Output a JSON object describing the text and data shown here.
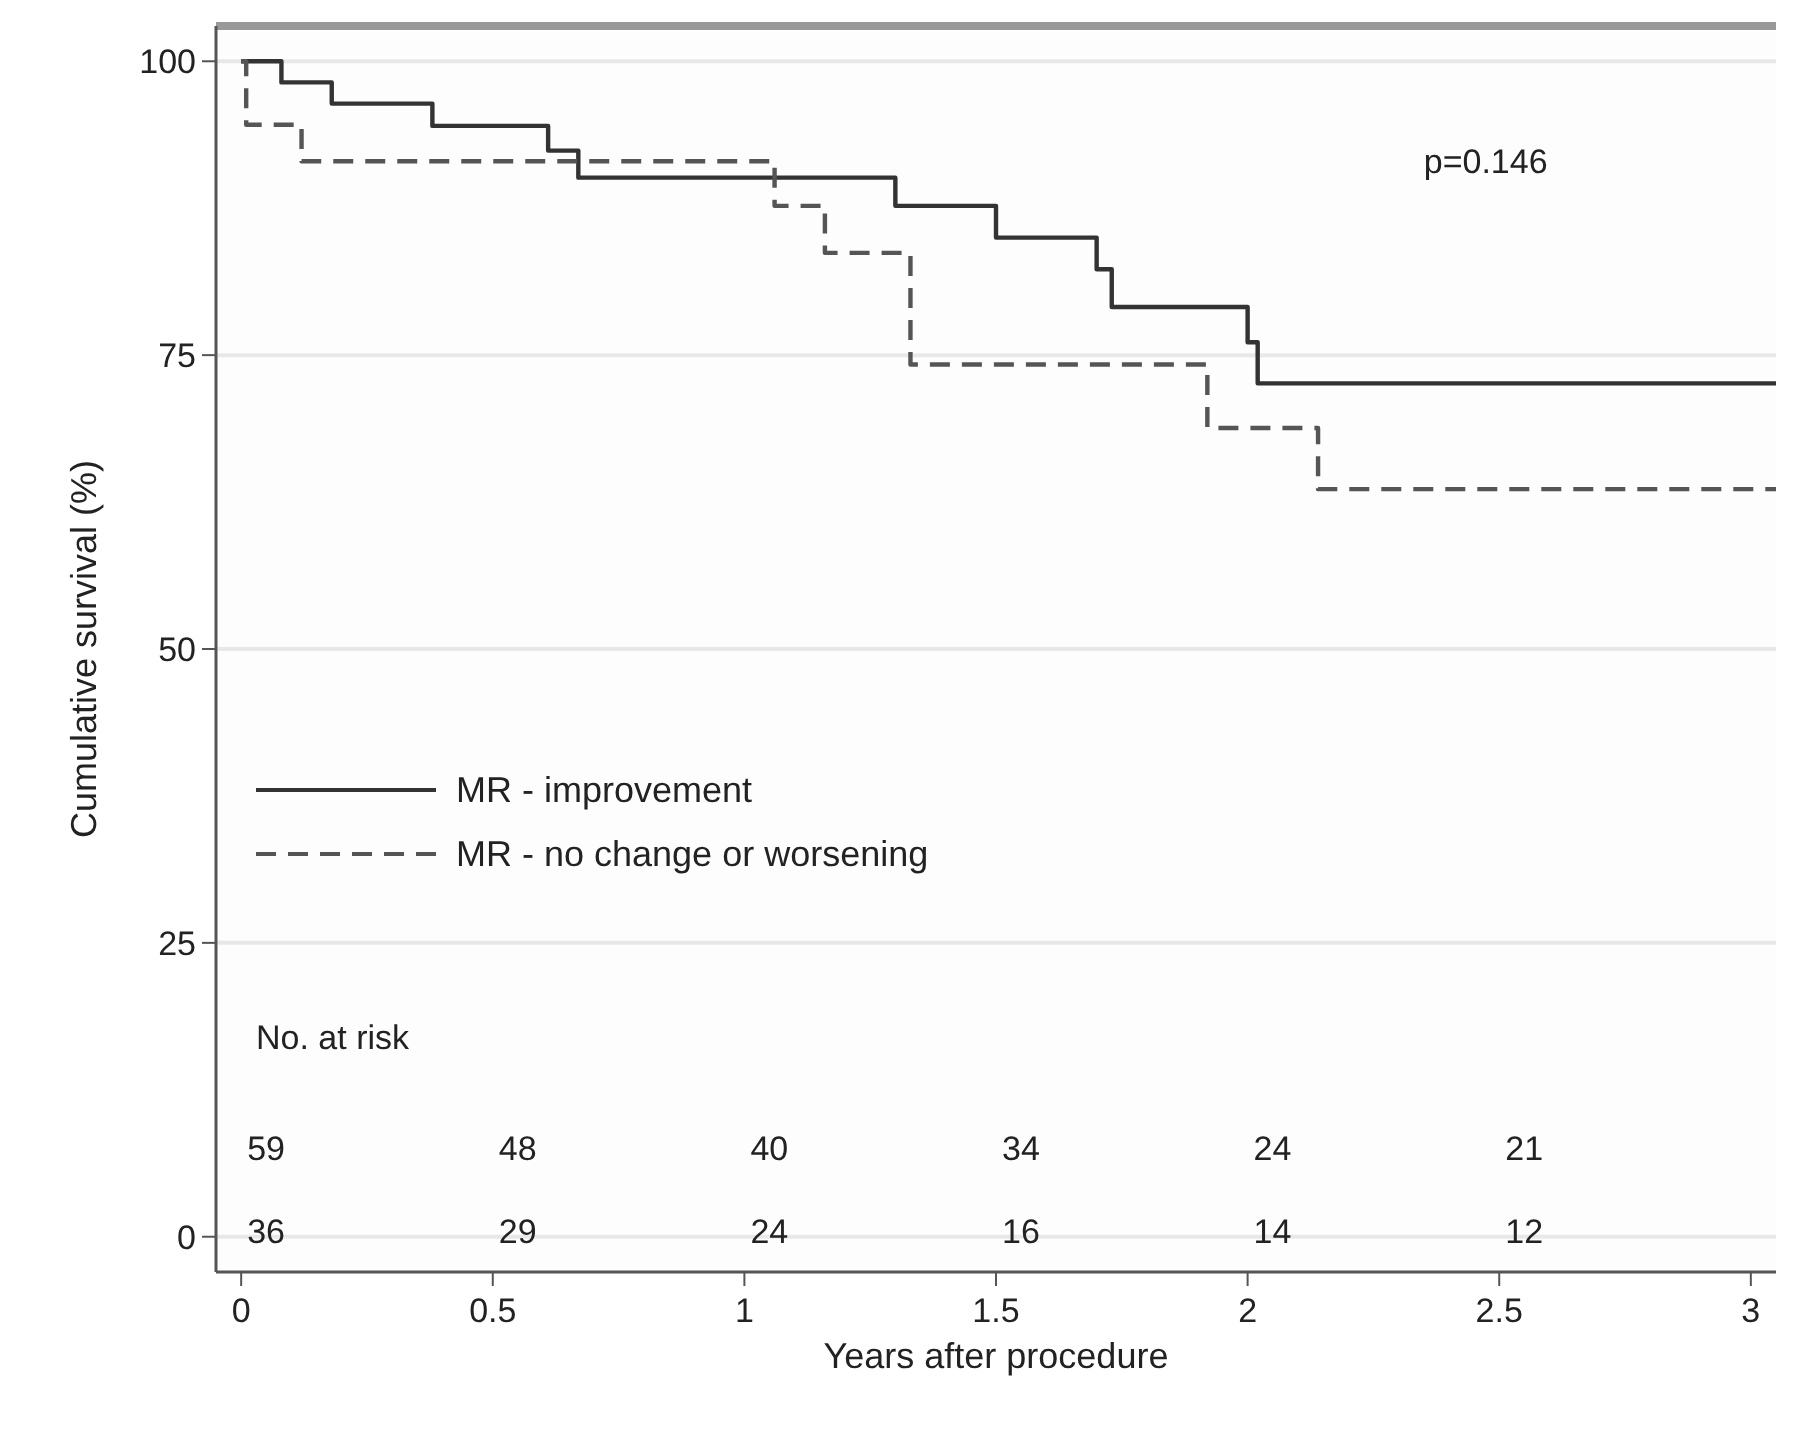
{
  "chart_data": {
    "type": "step",
    "xlabel": "Years after procedure",
    "ylabel": "Cumulative survival (%)",
    "xlim": [
      -0.05,
      3.05
    ],
    "ylim": [
      -3,
      103
    ],
    "xticks": [
      0,
      0.5,
      1,
      1.5,
      2,
      2.5,
      3
    ],
    "yticks": [
      0,
      25,
      50,
      75,
      100
    ],
    "grid": "y",
    "legend": "left",
    "marker": "none",
    "series": [
      {
        "name": "MR - improvement",
        "color": "#333333",
        "line_style": "solid",
        "x": [
          0,
          0.08,
          0.18,
          0.38,
          0.61,
          0.67,
          1.3,
          1.5,
          1.7,
          1.73,
          2.0,
          2.02,
          3.05
        ],
        "values": [
          100,
          98.2,
          96.4,
          94.5,
          92.4,
          90.1,
          87.7,
          85.0,
          82.3,
          79.1,
          76.1,
          72.6,
          72.6
        ]
      },
      {
        "name": "MR - no change or worsening",
        "color": "#555555",
        "line_style": "dashed",
        "x": [
          0,
          0.01,
          0.12,
          1.06,
          1.16,
          1.33,
          1.92,
          2.14,
          3.05
        ],
        "values": [
          100,
          94.6,
          91.5,
          87.7,
          83.7,
          74.2,
          68.8,
          63.6,
          63.6
        ]
      }
    ],
    "annotations": [
      "p=0.146",
      "No. at risk",
      "59",
      "48",
      "40",
      "34",
      "24",
      "21",
      "36",
      "29",
      "24",
      "16",
      "14",
      "12"
    ]
  }
}
